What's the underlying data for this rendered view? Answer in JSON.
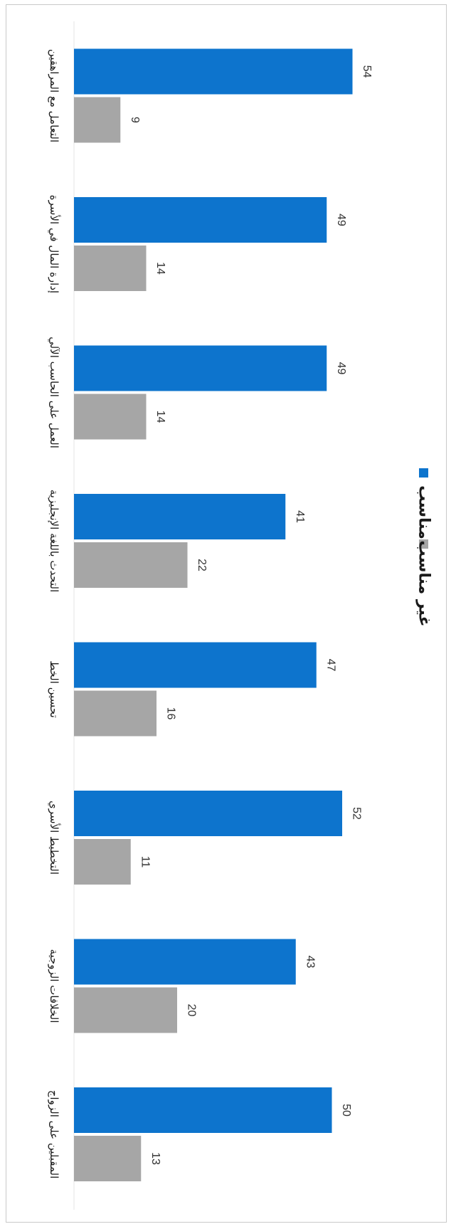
{
  "chart_data": {
    "type": "bar",
    "orientation": "horizontal, page rotated 90 degrees clockwise",
    "categories": [
      "المقبلين على الزواج",
      "الخلافات الزوجية",
      "التخطيط الأسري",
      "تحسين الخط",
      "التحدث باللغة الإنجليزية",
      "العمل على الحاسب الآلي",
      "إدارة المال في الأسرة",
      "التعامل مع المراهقين"
    ],
    "series": [
      {
        "name": "مناسب",
        "color": "#0d74cd",
        "values": [
          50,
          43,
          52,
          47,
          41,
          49,
          49,
          54
        ]
      },
      {
        "name": "غير مناسب",
        "color": "#a6a6a6",
        "values": [
          13,
          20,
          11,
          16,
          22,
          14,
          14,
          9
        ]
      }
    ],
    "xlim": [
      0,
      60
    ],
    "grid": false,
    "legend_position": "right"
  }
}
